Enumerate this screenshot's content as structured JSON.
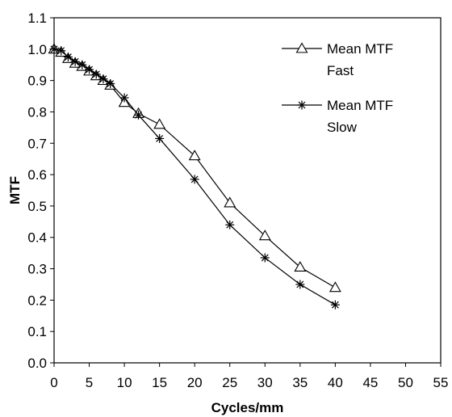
{
  "chart_data": {
    "type": "line",
    "title": "",
    "xlabel": "Cycles/mm",
    "ylabel": "MTF",
    "xlim": [
      0,
      55
    ],
    "ylim": [
      0,
      1.1
    ],
    "xticks": [
      "0",
      "5",
      "10",
      "15",
      "20",
      "25",
      "30",
      "35",
      "40",
      "45",
      "50",
      "55"
    ],
    "yticks": [
      "0.0",
      "0.1",
      "0.2",
      "0.3",
      "0.4",
      "0.5",
      "0.6",
      "0.7",
      "0.8",
      "0.9",
      "1.0",
      "1.1"
    ],
    "grid": false,
    "legend_position": "top-right",
    "series": [
      {
        "name_lines": [
          "Mean MTF",
          "Fast"
        ],
        "marker": "triangle",
        "x": [
          0,
          1,
          2,
          3,
          4,
          5,
          6,
          7,
          8,
          10,
          12,
          15,
          20,
          25,
          30,
          35,
          40
        ],
        "y": [
          1.0,
          0.99,
          0.97,
          0.955,
          0.945,
          0.93,
          0.915,
          0.9,
          0.885,
          0.83,
          0.795,
          0.76,
          0.66,
          0.51,
          0.405,
          0.305,
          0.24
        ]
      },
      {
        "name_lines": [
          "Mean MTF",
          "Slow"
        ],
        "marker": "asterisk",
        "x": [
          0,
          1,
          2,
          3,
          4,
          5,
          6,
          7,
          8,
          10,
          12,
          15,
          20,
          25,
          30,
          35,
          40
        ],
        "y": [
          1.0,
          0.995,
          0.975,
          0.96,
          0.95,
          0.935,
          0.92,
          0.905,
          0.89,
          0.845,
          0.79,
          0.715,
          0.585,
          0.44,
          0.335,
          0.25,
          0.185
        ]
      }
    ]
  }
}
